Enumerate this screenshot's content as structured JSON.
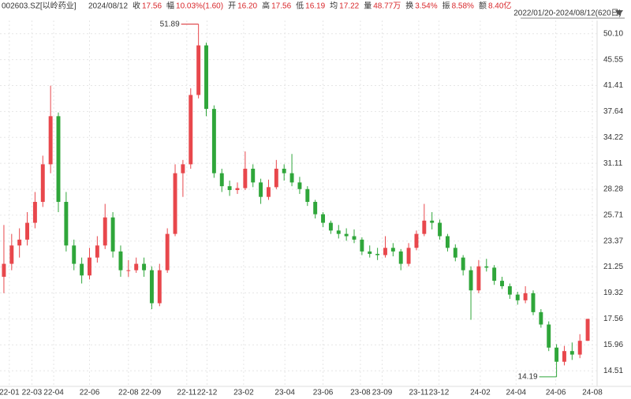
{
  "header": {
    "code": "002603.SZ[以岭药业]",
    "date": "2024/08/12",
    "items": [
      {
        "label": "收",
        "value": "17.56"
      },
      {
        "label": "幅",
        "value": "10.03%(1.60)"
      },
      {
        "label": "开",
        "value": "16.20"
      },
      {
        "label": "高",
        "value": "17.56"
      },
      {
        "label": "低",
        "value": "16.19"
      },
      {
        "label": "均",
        "value": "17.22"
      },
      {
        "label": "量",
        "value": "48.77万"
      },
      {
        "label": "换",
        "value": "3.54%"
      },
      {
        "label": "振",
        "value": "8.58%"
      },
      {
        "label": "额",
        "value": "8.40亿"
      }
    ],
    "range": "2022/01/20-2024/08/12(620日)"
  },
  "chart_data": {
    "type": "candlestick",
    "log_scale": true,
    "grid": true,
    "up_color": "#e8474c",
    "down_color": "#2fa63a",
    "open": [
      20.5,
      21.5,
      23,
      23.5,
      25,
      27,
      31,
      37,
      27,
      23,
      21.5,
      20.6,
      22,
      23,
      25.5,
      22.5,
      21,
      21,
      21.5,
      21,
      18.6,
      21,
      24,
      30,
      31,
      40,
      48,
      38,
      30,
      28.6,
      28.2,
      28.4,
      30.5,
      29,
      27.5,
      28.5,
      30.5,
      30,
      29,
      28.3,
      27,
      25.8,
      25,
      24.3,
      24,
      23.8,
      23.5,
      22.5,
      22.3,
      22.2,
      22.8,
      22.5,
      21.5,
      22.8,
      24,
      25.2,
      25,
      23.8,
      22.8,
      22,
      21,
      19.5,
      21.3,
      21.2,
      20.2,
      19.8,
      19.2,
      18.8,
      19.3,
      18,
      17.2,
      15.8,
      15,
      15.6,
      15.4,
      16.2
    ],
    "high": [
      24.8,
      24,
      24.5,
      26,
      28,
      32,
      41.4,
      37.5,
      28,
      23.5,
      22,
      22.8,
      23.8,
      26.8,
      26,
      23,
      21.8,
      22,
      22,
      21.3,
      21.5,
      24.5,
      31,
      31.5,
      41,
      51.89,
      48.5,
      38.5,
      30.5,
      29.2,
      29,
      32.5,
      31,
      29.4,
      29.3,
      31.5,
      31,
      32.2,
      29.6,
      28.6,
      27.2,
      26,
      25.2,
      24.8,
      24.5,
      24.4,
      23.7,
      23,
      22.8,
      23.8,
      23.2,
      22.7,
      23.2,
      24.3,
      26.8,
      26,
      25.3,
      24,
      23.1,
      22.2,
      21.3,
      21.8,
      21.9,
      21.4,
      20.5,
      20,
      19.4,
      19.8,
      19.5,
      18.2,
      17.4,
      16,
      15.9,
      16.1,
      16.6,
      17.56
    ],
    "low": [
      19.3,
      21,
      22,
      23,
      24.5,
      26.5,
      30,
      26,
      22.5,
      21,
      20,
      20.3,
      21.6,
      22.7,
      22,
      20.5,
      20.5,
      20.8,
      20.5,
      18.2,
      18.4,
      20.8,
      23.8,
      27.5,
      30.5,
      39.5,
      37,
      29.5,
      28,
      27.6,
      27.8,
      28.2,
      28.5,
      26.8,
      27.2,
      28.3,
      29.2,
      28.6,
      27.8,
      26.6,
      25.4,
      24.6,
      24,
      23.6,
      23.4,
      23.2,
      22.2,
      22,
      21.8,
      22,
      22.1,
      21,
      21.3,
      22.6,
      23.8,
      24.4,
      23.5,
      22.5,
      21.7,
      20.6,
      17.5,
      19.3,
      20.9,
      19.9,
      19.6,
      18.9,
      18.5,
      18.6,
      17.8,
      17,
      15.6,
      14.19,
      14.8,
      15.1,
      15.2,
      16.19
    ],
    "close": [
      21.5,
      23,
      23.5,
      25,
      27,
      31,
      37,
      27,
      23,
      21.5,
      20.6,
      22,
      23,
      25.5,
      22.5,
      21,
      21,
      21.5,
      21,
      18.6,
      21,
      24,
      30,
      31,
      40,
      48,
      38,
      30,
      28.6,
      28.2,
      28.4,
      30.5,
      29,
      27.5,
      28.5,
      30.5,
      30,
      29,
      28.3,
      27,
      25.8,
      25,
      24.3,
      24,
      23.8,
      23.5,
      22.5,
      22.3,
      22.2,
      22.8,
      22.5,
      21.5,
      22.8,
      24,
      25.2,
      25,
      23.8,
      22.8,
      22,
      21,
      19.5,
      21.3,
      21.2,
      20.2,
      19.8,
      19.2,
      18.8,
      19.3,
      18,
      17.2,
      15.8,
      15,
      15.6,
      15.4,
      16.2,
      17.56
    ],
    "xlim": [
      -0.5,
      75.5
    ],
    "xticks": [
      {
        "value": 0.7,
        "label": "22-01"
      },
      {
        "value": 3.6,
        "label": "22-03"
      },
      {
        "value": 6.4,
        "label": "22-04"
      },
      {
        "value": 11,
        "label": "22-06"
      },
      {
        "value": 16,
        "label": "22-08"
      },
      {
        "value": 18.9,
        "label": "22-09"
      },
      {
        "value": 23.5,
        "label": "22-11"
      },
      {
        "value": 26.1,
        "label": "22-12"
      },
      {
        "value": 30.8,
        "label": "23-02"
      },
      {
        "value": 36.1,
        "label": "23-04"
      },
      {
        "value": 41,
        "label": "23-06"
      },
      {
        "value": 45.8,
        "label": "23-08"
      },
      {
        "value": 48.6,
        "label": "23-09"
      },
      {
        "value": 53.3,
        "label": "23-11"
      },
      {
        "value": 55.9,
        "label": "23-12"
      },
      {
        "value": 61.2,
        "label": "24-02"
      },
      {
        "value": 65.8,
        "label": "24-04"
      },
      {
        "value": 70.9,
        "label": "24-06"
      },
      {
        "value": 75.6,
        "label": "24-08"
      }
    ],
    "ylim": [
      13.7,
      52.6
    ],
    "yticks": [
      14.51,
      15.96,
      17.56,
      19.32,
      21.25,
      23.37,
      25.71,
      28.28,
      31.11,
      34.22,
      37.64,
      41.41,
      45.55,
      {
        "value": 50.1,
        "label": "50.10"
      }
    ]
  }
}
